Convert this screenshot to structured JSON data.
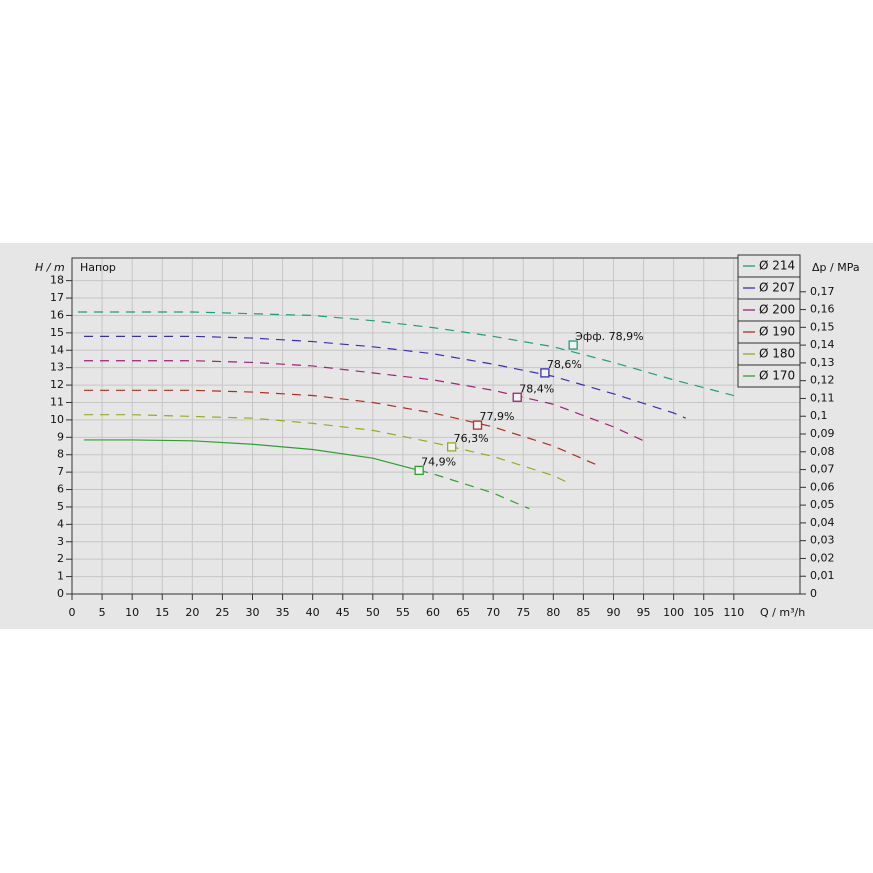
{
  "chart_data": {
    "type": "line",
    "x_label": "Q / m³/h",
    "y_label": "H / m",
    "y_title": "Напор",
    "y2_label": "Δp / MPa",
    "xlim": [
      0,
      121
    ],
    "xticks": [
      0,
      5,
      10,
      15,
      20,
      25,
      30,
      35,
      40,
      45,
      50,
      55,
      60,
      65,
      70,
      75,
      80,
      85,
      90,
      95,
      100,
      105,
      110
    ],
    "ylim": [
      0,
      19.3
    ],
    "yticks": [
      0,
      1,
      2,
      3,
      4,
      5,
      6,
      7,
      8,
      9,
      10,
      11,
      12,
      13,
      14,
      15,
      16,
      17,
      18
    ],
    "y2lim": [
      0,
      0.189
    ],
    "y2ticks": [
      0,
      {
        "value": 0.01,
        "label": "0,01"
      },
      {
        "value": 0.02,
        "label": "0,02"
      },
      {
        "value": 0.03,
        "label": "0,03"
      },
      {
        "value": 0.04,
        "label": "0,04"
      },
      {
        "value": 0.05,
        "label": "0,05"
      },
      {
        "value": 0.06,
        "label": "0,06"
      },
      {
        "value": 0.07,
        "label": "0,07"
      },
      {
        "value": 0.08,
        "label": "0,08"
      },
      {
        "value": 0.09,
        "label": "0,09"
      },
      {
        "value": 0.1,
        "label": "0,1"
      },
      {
        "value": 0.11,
        "label": "0,11"
      },
      {
        "value": 0.12,
        "label": "0,12"
      },
      {
        "value": 0.13,
        "label": "0,13"
      },
      {
        "value": 0.14,
        "label": "0,14"
      },
      {
        "value": 0.15,
        "label": "0,15"
      },
      {
        "value": 0.16,
        "label": "0,16"
      },
      {
        "value": 0.17,
        "label": "0,17"
      }
    ],
    "grid": true,
    "legend": "top-right",
    "series": [
      {
        "name": "Ø 214",
        "color": "#1f9d7f",
        "style": "dashed",
        "x": [
          1,
          10,
          20,
          30,
          40,
          50,
          60,
          70,
          80,
          90,
          100,
          110
        ],
        "values": [
          16.2,
          16.2,
          16.2,
          16.1,
          16.0,
          15.7,
          15.3,
          14.8,
          14.2,
          13.3,
          12.3,
          11.4
        ],
        "bep": {
          "q": 83.3,
          "h": 14.3,
          "label": "Эфф.  78,9%"
        }
      },
      {
        "name": "Ø 207",
        "color": "#3a2fb0",
        "style": "dashed",
        "x": [
          2,
          10,
          20,
          30,
          40,
          50,
          60,
          70,
          80,
          90,
          100,
          102
        ],
        "values": [
          14.8,
          14.8,
          14.8,
          14.7,
          14.5,
          14.2,
          13.8,
          13.2,
          12.5,
          11.5,
          10.4,
          10.1
        ],
        "bep": {
          "q": 78.6,
          "h": 12.7,
          "label": "78,6%"
        }
      },
      {
        "name": "Ø 200",
        "color": "#a0207a",
        "style": "dashed",
        "x": [
          2,
          10,
          20,
          30,
          40,
          50,
          60,
          70,
          80,
          90,
          95
        ],
        "values": [
          13.4,
          13.4,
          13.4,
          13.3,
          13.1,
          12.7,
          12.3,
          11.7,
          10.9,
          9.6,
          8.8
        ],
        "bep": {
          "q": 74.0,
          "h": 11.3,
          "label": "78,4%"
        }
      },
      {
        "name": "Ø 190",
        "color": "#b03020",
        "style": "dashed",
        "x": [
          2,
          10,
          20,
          30,
          40,
          50,
          60,
          70,
          80,
          88
        ],
        "values": [
          11.7,
          11.7,
          11.7,
          11.6,
          11.4,
          11.0,
          10.4,
          9.6,
          8.5,
          7.3
        ],
        "bep": {
          "q": 67.4,
          "h": 9.7,
          "label": "77,9%"
        }
      },
      {
        "name": "Ø 180",
        "color": "#9aaa20",
        "style": "dashed",
        "x": [
          2,
          10,
          20,
          30,
          40,
          50,
          60,
          70,
          80,
          83
        ],
        "values": [
          10.3,
          10.3,
          10.2,
          10.1,
          9.8,
          9.4,
          8.7,
          7.9,
          6.8,
          6.3
        ],
        "bep": {
          "q": 63.1,
          "h": 8.45,
          "label": "76,3%"
        }
      },
      {
        "name": "Ø 170",
        "color": "#2fa02f",
        "style": "solid-then-dashed",
        "x": [
          2,
          10,
          20,
          30,
          40,
          50,
          57.7,
          60,
          70,
          76
        ],
        "values": [
          8.85,
          8.85,
          8.8,
          8.6,
          8.3,
          7.8,
          7.1,
          6.9,
          5.8,
          4.9
        ],
        "bep": {
          "q": 57.7,
          "h": 7.1,
          "label": "74,9%"
        }
      }
    ]
  }
}
